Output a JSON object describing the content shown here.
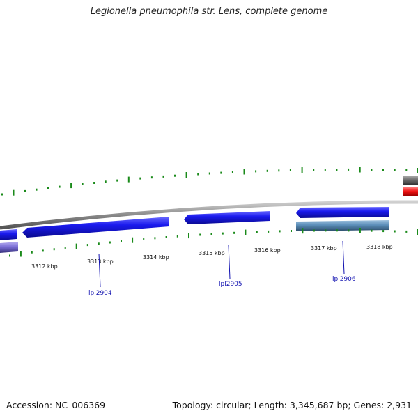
{
  "header": {
    "title": "Legionella pneumophila str. Lens, complete genome"
  },
  "footer": {
    "accession": "Accession: NC_006369",
    "summary": "Topology: circular; Length: 3,345,687 bp; Genes: 2,931"
  },
  "ruler": {
    "unit": "kbp",
    "tick_labels": [
      "3312 kbp",
      "3313 kbp",
      "3314 kbp",
      "3315 kbp",
      "3316 kbp",
      "3317 kbp",
      "3318 kbp"
    ]
  },
  "genes": [
    {
      "name": "lpl2904",
      "label": "lpl2904"
    },
    {
      "name": "lpl2905",
      "label": "lpl2905"
    },
    {
      "name": "lpl2906",
      "label": "lpl2906"
    }
  ],
  "colors": {
    "backbone": "#8a8a8a",
    "gene_blue": "#1a1aee",
    "gene_steel": "#5b8db8",
    "gene_purple": "#7b6fd6",
    "gene_red": "#ee1010",
    "gene_gray": "#707070",
    "tick_green": "#1a8a1a",
    "label_blue": "#1010b0"
  }
}
